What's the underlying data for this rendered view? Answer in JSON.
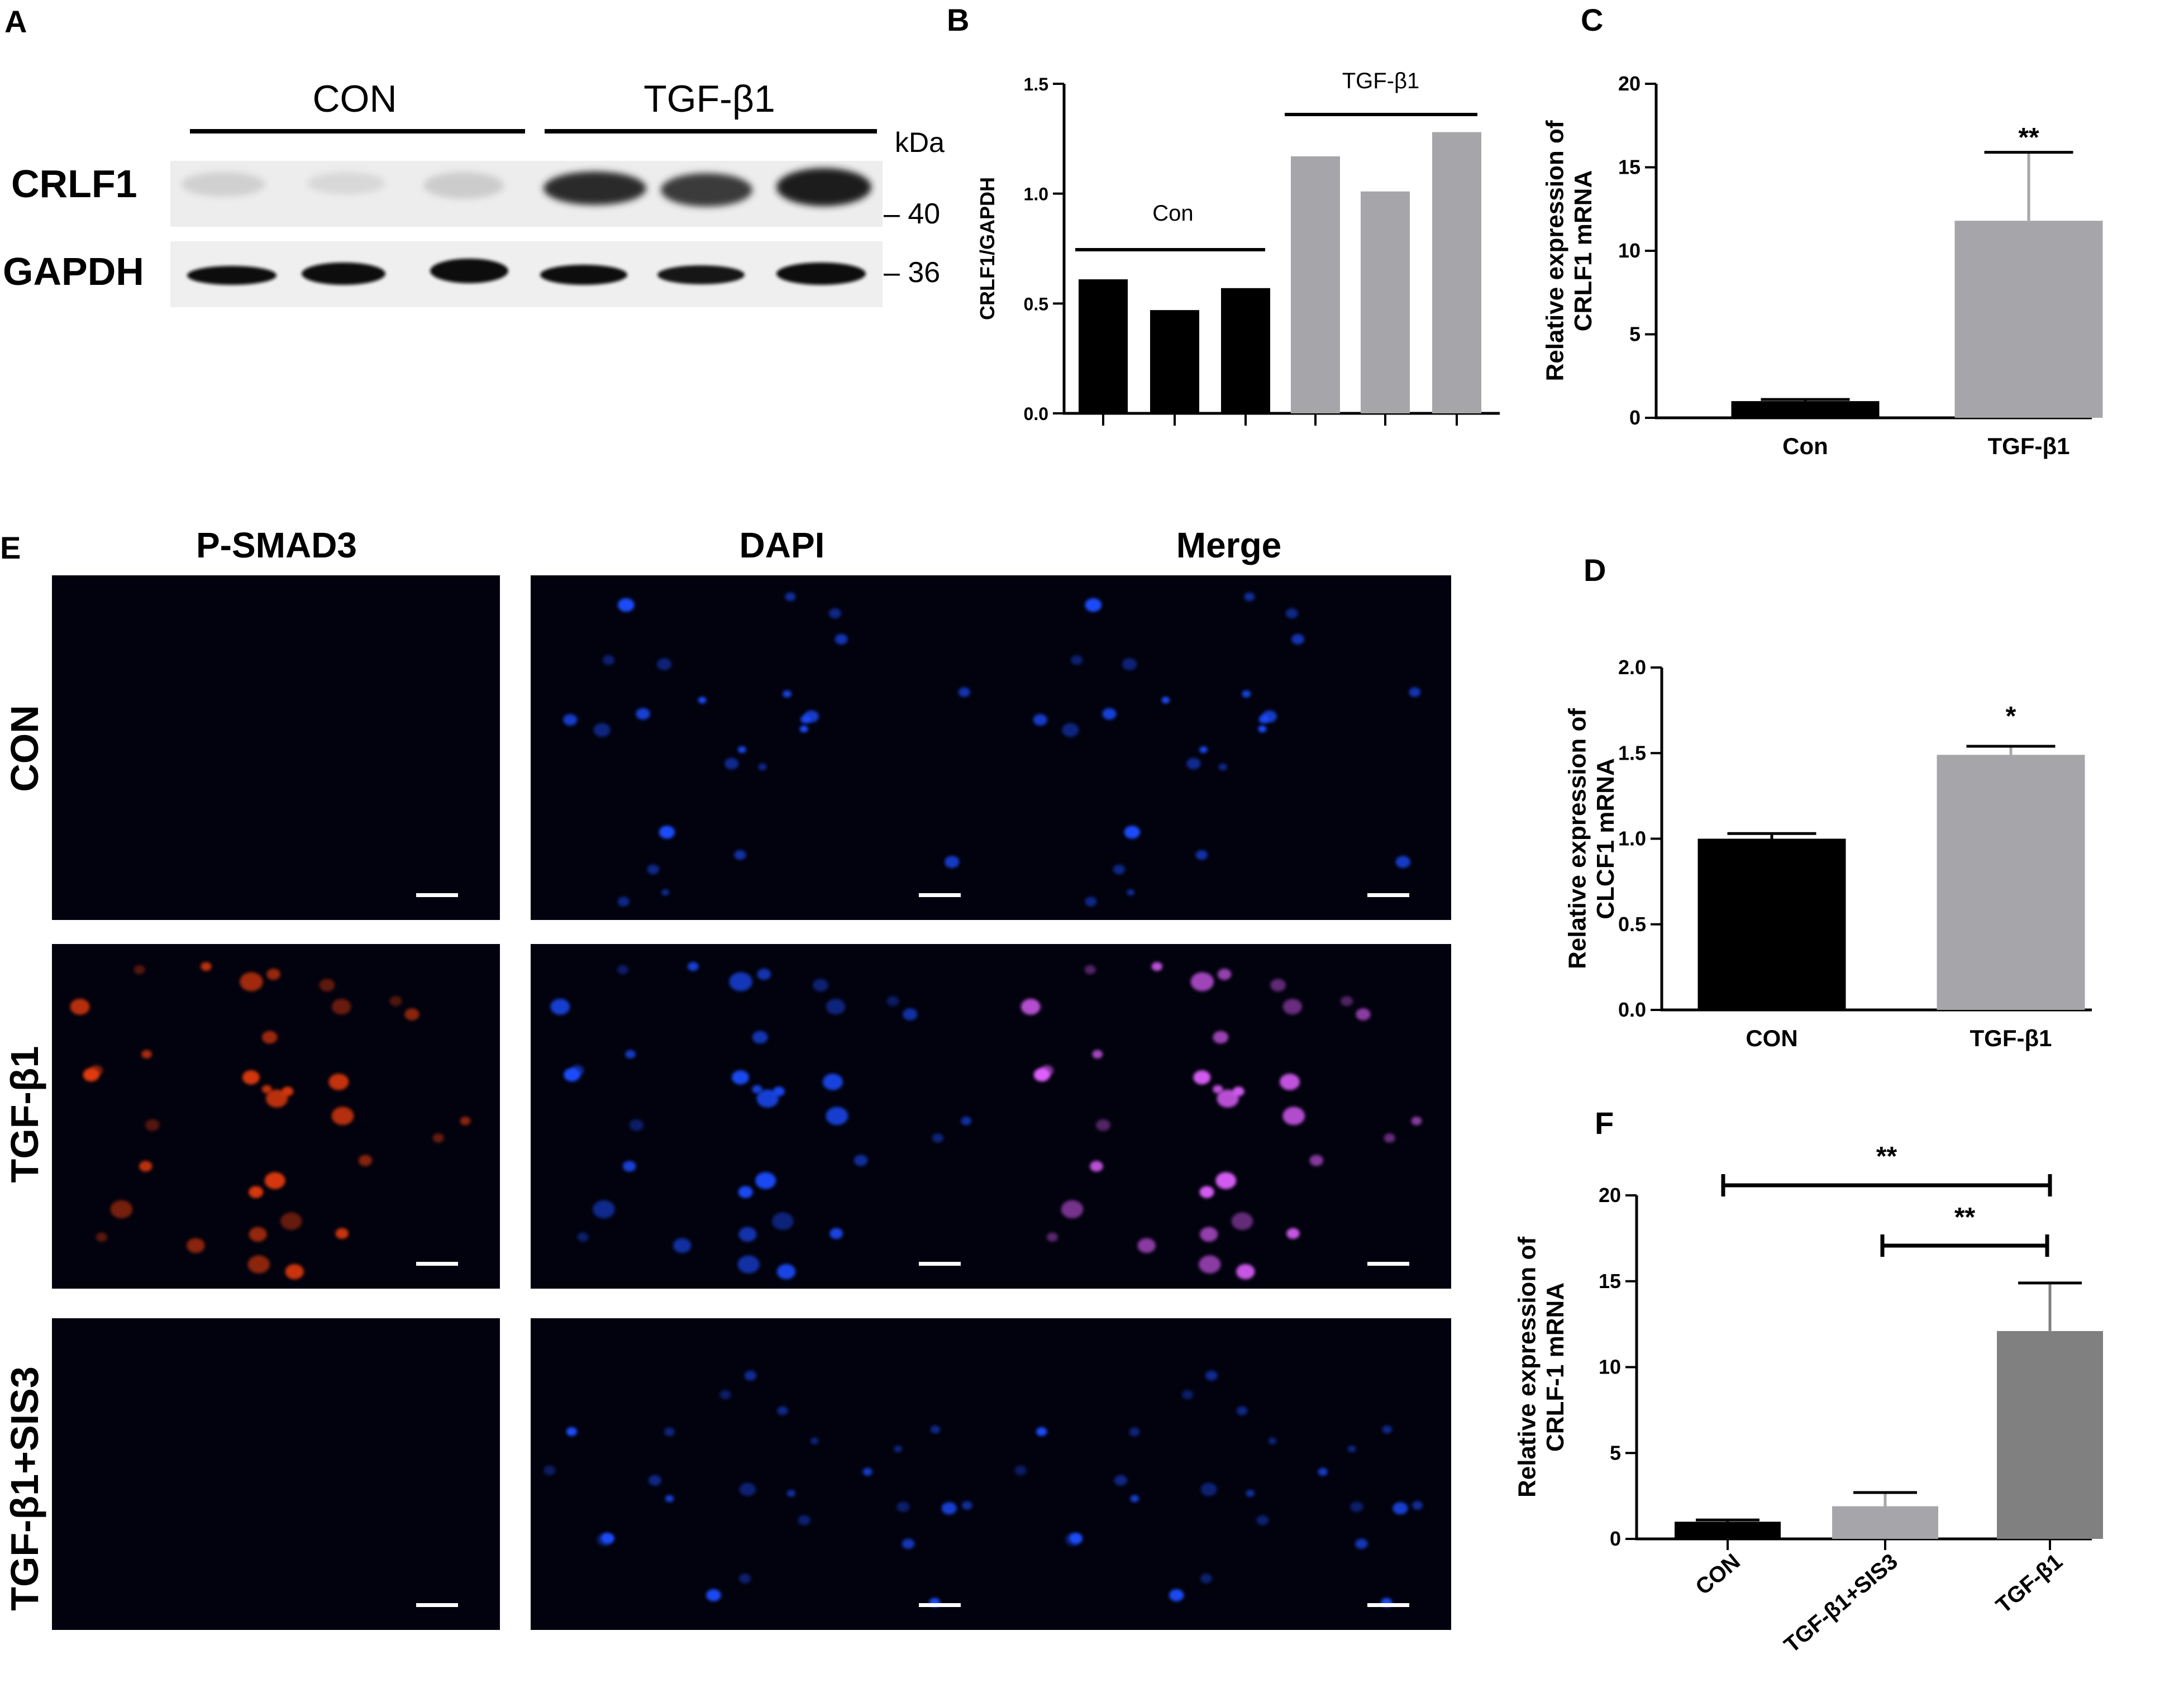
{
  "panels": {
    "A": {
      "label": "A",
      "groups": [
        "CON",
        "TGF-β1"
      ],
      "unit": "kDa",
      "rows": [
        {
          "name": "CRLF1",
          "marker": "– 40"
        },
        {
          "name": "GAPDH",
          "marker": "– 36"
        }
      ]
    },
    "E": {
      "label": "E",
      "columns": [
        "P-SMAD3",
        "DAPI",
        "Merge"
      ],
      "rows": [
        "CON",
        "TGF-β1",
        "TGF-β1+SIS3"
      ]
    }
  },
  "colors": {
    "black_bar": "#000000",
    "light_gray_bar": "#a6a6aa",
    "dark_gray_bar": "#808080",
    "dapi": "#1a4dff",
    "psmad3": "#e23a10",
    "merge": "#e060ff",
    "image_bg": "#02020e"
  },
  "chart_data": [
    {
      "panel": "B",
      "type": "bar",
      "categories": [
        "",
        "",
        "",
        "",
        "",
        ""
      ],
      "values": [
        0.61,
        0.47,
        0.57,
        1.17,
        1.01,
        1.28
      ],
      "ylabel": "CRLF1/GAPDH",
      "ylim": [
        0,
        1.5
      ],
      "yticks": [
        "0.0",
        "0.5",
        "1.0",
        "1.5"
      ],
      "ytick_values": [
        0,
        0.5,
        1.0,
        1.5
      ],
      "group_labels": [
        "Con",
        "TGF-β1"
      ],
      "bar_colors": [
        "#000000",
        "#000000",
        "#000000",
        "#a6a6aa",
        "#a6a6aa",
        "#a6a6aa"
      ]
    },
    {
      "panel": "C",
      "type": "bar",
      "categories": [
        "Con",
        "TGF-β1"
      ],
      "values": [
        1.0,
        11.8
      ],
      "errors": [
        0.1,
        4.1
      ],
      "ylabel": "Relative expression of CRLF1 mRNA",
      "ylim": [
        0,
        20
      ],
      "yticks": [
        "0",
        "5",
        "10",
        "15",
        "20"
      ],
      "ytick_values": [
        0,
        5,
        10,
        15,
        20
      ],
      "annotations": [
        "**"
      ],
      "bar_colors": [
        "#000000",
        "#a6a6aa"
      ]
    },
    {
      "panel": "D",
      "type": "bar",
      "categories": [
        "CON",
        "TGF-β1"
      ],
      "values": [
        1.0,
        1.49
      ],
      "errors": [
        0.03,
        0.05
      ],
      "ylabel": "Relative expression of CLCF1 mRNA",
      "ylim": [
        0,
        2.0
      ],
      "yticks": [
        "0.0",
        "0.5",
        "1.0",
        "1.5",
        "2.0"
      ],
      "ytick_values": [
        0,
        0.5,
        1.0,
        1.5,
        2.0
      ],
      "annotations": [
        "*"
      ],
      "bar_colors": [
        "#000000",
        "#a6a6aa"
      ]
    },
    {
      "panel": "F",
      "type": "bar",
      "categories": [
        "CON",
        "TGF-β1+SIS3",
        "TGF-β1"
      ],
      "values": [
        1.0,
        1.9,
        12.1
      ],
      "errors": [
        0.1,
        0.8,
        2.8
      ],
      "ylabel": "Relative expression of CRLF-1 mRNA",
      "ylim": [
        0,
        20
      ],
      "yticks": [
        "0",
        "5",
        "10",
        "15",
        "20"
      ],
      "ytick_values": [
        0,
        5,
        10,
        15,
        20
      ],
      "annotations": [
        "**",
        "**"
      ],
      "bar_colors": [
        "#000000",
        "#a6a6aa",
        "#808080"
      ]
    }
  ]
}
